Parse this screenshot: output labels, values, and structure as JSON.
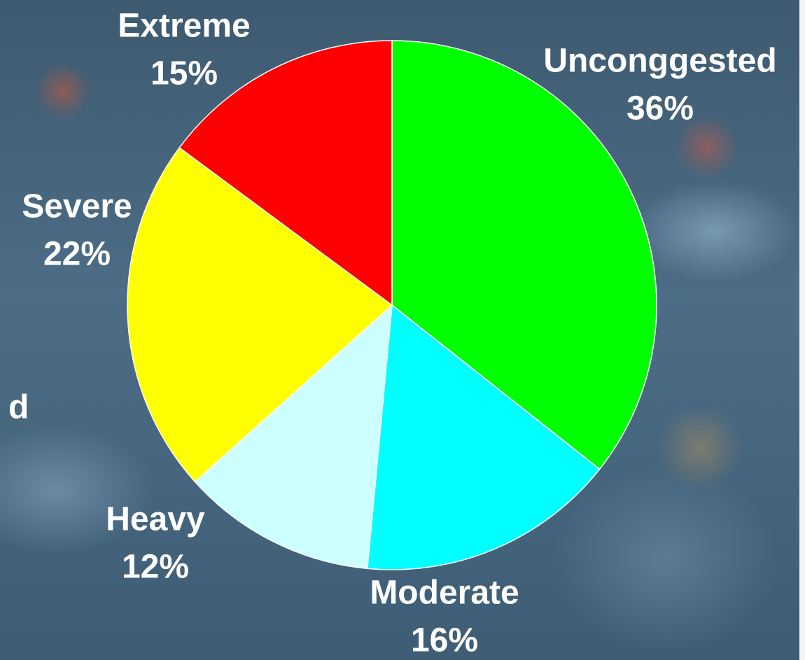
{
  "chart_data": {
    "type": "pie",
    "categories": [
      "Unconggested",
      "Moderate",
      "Heavy",
      "Severe",
      "Extreme"
    ],
    "values": [
      36,
      16,
      12,
      22,
      15
    ],
    "value_labels": [
      "36%",
      "16%",
      "12%",
      "22%",
      "15%"
    ],
    "colors": [
      "#00ff00",
      "#00ffff",
      "#ccffff",
      "#ffff00",
      "#ff0000"
    ],
    "annotation": "d"
  }
}
